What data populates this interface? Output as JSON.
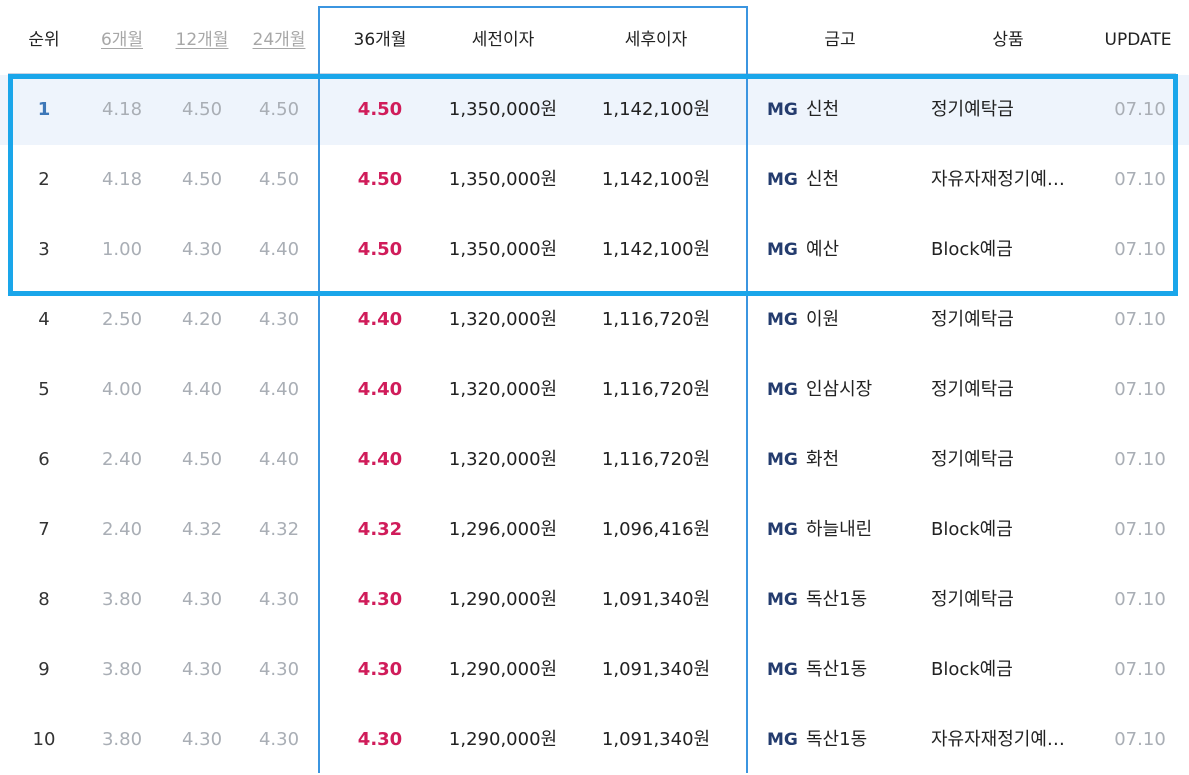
{
  "table": {
    "headers": {
      "rank": "순위",
      "m6": "6개월",
      "m12": "12개월",
      "m24": "24개월",
      "m36": "36개월",
      "pretax": "세전이자",
      "aftertax": "세후이자",
      "bank": "금고",
      "product": "상품",
      "update": "UPDATE"
    },
    "rows": [
      {
        "rank": "1",
        "m6": "4.18",
        "m12": "4.50",
        "m24": "4.50",
        "m36": "4.50",
        "pretax": "1,350,000원",
        "aftertax": "1,142,100원",
        "mg": "MG",
        "bank": "신천",
        "product": "정기예탁금",
        "update": "07.10"
      },
      {
        "rank": "2",
        "m6": "4.18",
        "m12": "4.50",
        "m24": "4.50",
        "m36": "4.50",
        "pretax": "1,350,000원",
        "aftertax": "1,142,100원",
        "mg": "MG",
        "bank": "신천",
        "product": "자유자재정기예…",
        "update": "07.10"
      },
      {
        "rank": "3",
        "m6": "1.00",
        "m12": "4.30",
        "m24": "4.40",
        "m36": "4.50",
        "pretax": "1,350,000원",
        "aftertax": "1,142,100원",
        "mg": "MG",
        "bank": "예산",
        "product": "Block예금",
        "update": "07.10"
      },
      {
        "rank": "4",
        "m6": "2.50",
        "m12": "4.20",
        "m24": "4.30",
        "m36": "4.40",
        "pretax": "1,320,000원",
        "aftertax": "1,116,720원",
        "mg": "MG",
        "bank": "이원",
        "product": "정기예탁금",
        "update": "07.10"
      },
      {
        "rank": "5",
        "m6": "4.00",
        "m12": "4.40",
        "m24": "4.40",
        "m36": "4.40",
        "pretax": "1,320,000원",
        "aftertax": "1,116,720원",
        "mg": "MG",
        "bank": "인삼시장",
        "product": "정기예탁금",
        "update": "07.10"
      },
      {
        "rank": "6",
        "m6": "2.40",
        "m12": "4.50",
        "m24": "4.40",
        "m36": "4.40",
        "pretax": "1,320,000원",
        "aftertax": "1,116,720원",
        "mg": "MG",
        "bank": "화천",
        "product": "정기예탁금",
        "update": "07.10"
      },
      {
        "rank": "7",
        "m6": "2.40",
        "m12": "4.32",
        "m24": "4.32",
        "m36": "4.32",
        "pretax": "1,296,000원",
        "aftertax": "1,096,416원",
        "mg": "MG",
        "bank": "하늘내린",
        "product": "Block예금",
        "update": "07.10"
      },
      {
        "rank": "8",
        "m6": "3.80",
        "m12": "4.30",
        "m24": "4.30",
        "m36": "4.30",
        "pretax": "1,290,000원",
        "aftertax": "1,091,340원",
        "mg": "MG",
        "bank": "독산1동",
        "product": "정기예탁금",
        "update": "07.10"
      },
      {
        "rank": "9",
        "m6": "3.80",
        "m12": "4.30",
        "m24": "4.30",
        "m36": "4.30",
        "pretax": "1,290,000원",
        "aftertax": "1,091,340원",
        "mg": "MG",
        "bank": "독산1동",
        "product": "Block예금",
        "update": "07.10"
      },
      {
        "rank": "10",
        "m6": "3.80",
        "m12": "4.30",
        "m24": "4.30",
        "m36": "4.30",
        "pretax": "1,290,000원",
        "aftertax": "1,091,340원",
        "mg": "MG",
        "bank": "독산1동",
        "product": "자유자재정기예…",
        "update": "07.10"
      }
    ]
  },
  "colors": {
    "rate36": "#d01c5a",
    "muted": "#a9aeb5",
    "column_highlight": "#3b95e0",
    "selection_box": "#1aa6ea",
    "top_row_bg": "#eef4fc",
    "mg_logo": "#243c6e"
  }
}
